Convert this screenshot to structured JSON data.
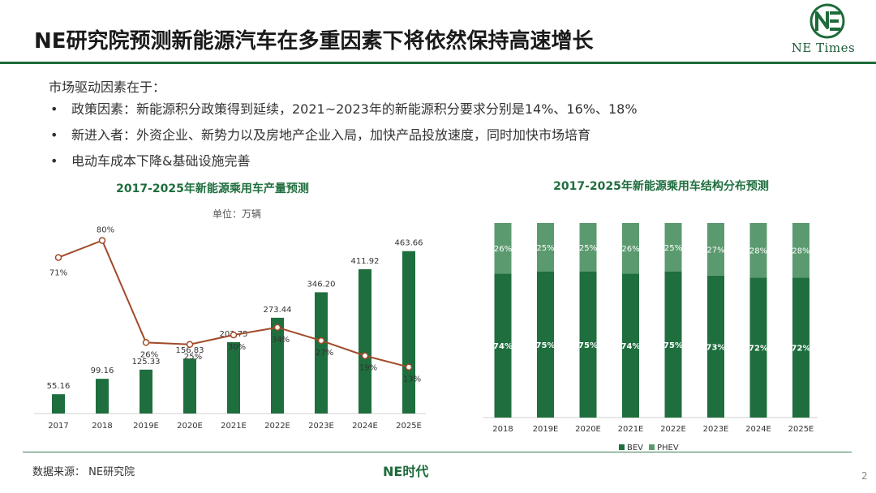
{
  "header": {
    "title": "NE研究院预测新能源汽车在多重因素下将依然保持高速增长",
    "logo_text": "NE Times"
  },
  "content": {
    "intro": "市场驱动因素在于：",
    "bullets": [
      "政策因素：新能源积分政策得到延续，2021~2023年的新能源积分要求分别是14%、16%、18%",
      "新进入者：外资企业、新势力以及房地产企业入局，加快产品投放速度，同时加快市场培育",
      "电动车成本下降&基础设施完善"
    ]
  },
  "chart_data": [
    {
      "type": "bar",
      "title": "2017-2025年新能源乘用车产量预测",
      "unit": "单位：万辆",
      "categories": [
        "2017",
        "2018",
        "2019E",
        "2020E",
        "2021E",
        "2022E",
        "2023E",
        "2024E",
        "2025E"
      ],
      "series": [
        {
          "values": [
            55.16,
            99.16,
            125.33,
            156.83,
            203.75,
            273.44,
            346.2,
            411.92,
            463.66
          ],
          "labels": [
            "55.16",
            "99.16",
            "125.33",
            "156.83",
            "203.75",
            "273.44",
            "346.20",
            "411.92",
            "463.66"
          ]
        },
        {
          "type": "line",
          "values": [
            71,
            80,
            26,
            25,
            30,
            34,
            27,
            19,
            13
          ],
          "labels": [
            "71%",
            "80%",
            "26%",
            "25%",
            "30%",
            "34%",
            "27%",
            "19%",
            "13%"
          ]
        }
      ],
      "colors": {
        "bar": "#1f6e3e",
        "line": "#a04a2a"
      }
    },
    {
      "type": "bar",
      "stacked": true,
      "title": "2017-2025年新能源乘用车结构分布预测",
      "categories": [
        "2018",
        "2019E",
        "2020E",
        "2021E",
        "2022E",
        "2023E",
        "2024E",
        "2025E"
      ],
      "series": [
        {
          "name": "BEV",
          "values": [
            74,
            75,
            75,
            74,
            75,
            73,
            72,
            72
          ],
          "labels": [
            "74%",
            "75%",
            "75%",
            "74%",
            "75%",
            "73%",
            "72%",
            "72%"
          ]
        },
        {
          "name": "PHEV",
          "values": [
            26,
            25,
            25,
            26,
            25,
            27,
            28,
            28
          ],
          "labels": [
            "26%",
            "25%",
            "25%",
            "26%",
            "25%",
            "27%",
            "28%",
            "28%"
          ]
        }
      ],
      "legend_position": "bottom",
      "colors": {
        "BEV": "#1f6e3e",
        "PHEV": "#5b9a6f"
      }
    }
  ],
  "footer": {
    "source": "数据来源： NE研究院",
    "brand": "NE时代",
    "page": "2"
  }
}
